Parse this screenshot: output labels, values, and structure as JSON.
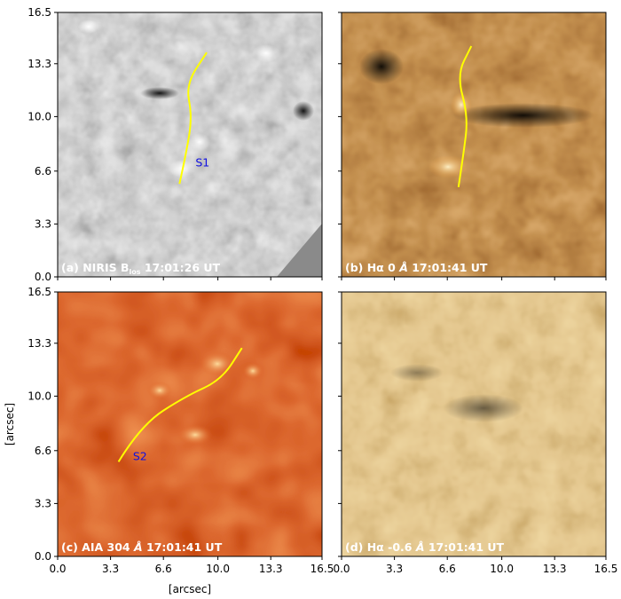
{
  "axis_label": "[arcsec]",
  "ticks": {
    "x_values": [
      0.0,
      3.3,
      6.6,
      10.0,
      13.3,
      16.5
    ],
    "x_labels": [
      "0.0",
      "3.3",
      "6.6",
      "10.0",
      "13.3",
      "16.5"
    ],
    "y_values": [
      0.0,
      3.3,
      6.6,
      10.0,
      13.3,
      16.5
    ],
    "y_labels": [
      "0.0",
      "3.3",
      "6.6",
      "10.0",
      "13.3",
      "16.5"
    ],
    "range": [
      0,
      16.5
    ]
  },
  "panels": [
    {
      "key": "a",
      "caption_pre": "(a) NIRIS B",
      "caption_sub": "los",
      "caption_post": " 17:01:26 UT",
      "colormap": "gray",
      "slit_label": "S1",
      "slit_label_pos": [
        8.6,
        6.9
      ],
      "slit_curve": [
        [
          7.6,
          5.8
        ],
        [
          8.0,
          7.6
        ],
        [
          8.4,
          10.0
        ],
        [
          8.0,
          12.0
        ],
        [
          9.3,
          14.0
        ]
      ]
    },
    {
      "key": "b",
      "caption_pre": "(b) Hα 0 ",
      "caption_italic": "Å",
      "caption_post": " 17:01:41 UT",
      "colormap": "brown",
      "slit_label": "",
      "slit_curve": [
        [
          7.3,
          5.6
        ],
        [
          7.6,
          7.6
        ],
        [
          7.9,
          10.0
        ],
        [
          7.2,
          12.6
        ],
        [
          8.1,
          14.4
        ]
      ]
    },
    {
      "key": "c",
      "caption_pre": "(c) AIA 304 ",
      "caption_italic": "Å",
      "caption_post": " 17:01:41 UT",
      "colormap": "red",
      "slit_label": "S2",
      "slit_label_pos": [
        4.7,
        6.0
      ],
      "slit_curve": [
        [
          3.8,
          5.9
        ],
        [
          5.2,
          8.2
        ],
        [
          8.0,
          10.0
        ],
        [
          10.2,
          11.0
        ],
        [
          11.5,
          13.0
        ]
      ]
    },
    {
      "key": "d",
      "caption_pre": "(d) Hα -0.6 ",
      "caption_italic": "Å",
      "caption_post": " 17:01:41 UT",
      "colormap": "tan",
      "slit_label": "",
      "slit_curve": []
    }
  ],
  "colors": {
    "slit": "#ffff00",
    "slit_label": "#1010e0",
    "caption": "#ffffff",
    "gray": [
      "#3a3a3a",
      "#d4d4d4"
    ],
    "brown": [
      "#3a1200",
      "#e0a050"
    ],
    "red": [
      "#5a0000",
      "#f0a040"
    ],
    "tan": [
      "#6b4818",
      "#e6c06a"
    ]
  }
}
